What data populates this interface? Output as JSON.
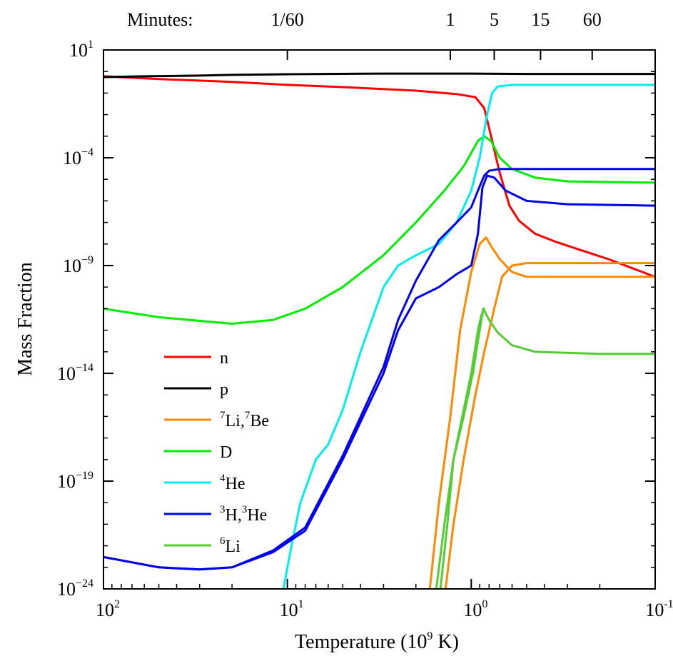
{
  "chart_data": {
    "type": "line",
    "title": "",
    "xlabel": "Temperature (10⁹ K)",
    "ylabel": "Mass Fraction",
    "x_scale": "log",
    "x_direction": "decreasing",
    "xlim": [
      100,
      0.1
    ],
    "y_scale": "log",
    "ylim": [
      1e-24,
      10
    ],
    "x_ticks": [
      {
        "value": 100,
        "base": "10",
        "exp": "2"
      },
      {
        "value": 10,
        "base": "10",
        "exp": "1"
      },
      {
        "value": 1,
        "base": "10",
        "exp": "0"
      },
      {
        "value": 0.1,
        "base": "10",
        "exp": "-1"
      }
    ],
    "y_ticks": [
      {
        "value": 10,
        "base": "10",
        "exp": "1"
      },
      {
        "value": 0.0001,
        "base": "10",
        "exp": "−4"
      },
      {
        "value": 1e-09,
        "base": "10",
        "exp": "−9"
      },
      {
        "value": 1e-14,
        "base": "10",
        "exp": "−14"
      },
      {
        "value": 1e-19,
        "base": "10",
        "exp": "−19"
      },
      {
        "value": 1e-24,
        "base": "10",
        "exp": "−24"
      }
    ],
    "top_axis": {
      "label": "Minutes:",
      "ticks": [
        {
          "label": "1/60",
          "temperature": 10
        },
        {
          "label": "1",
          "temperature": 1.3
        },
        {
          "label": "5",
          "temperature": 0.75
        },
        {
          "label": "15",
          "temperature": 0.42
        },
        {
          "label": "60",
          "temperature": 0.22
        }
      ]
    },
    "grid": false,
    "legend_position": "lower-left",
    "series": [
      {
        "name": "n",
        "legend": [
          {
            "t": "n"
          }
        ],
        "color": "#ff0000",
        "points": [
          [
            100,
            0.6
          ],
          [
            50,
            0.45
          ],
          [
            20,
            0.33
          ],
          [
            10,
            0.24
          ],
          [
            5,
            0.19
          ],
          [
            2,
            0.13
          ],
          [
            1.2,
            0.09
          ],
          [
            0.95,
            0.065
          ],
          [
            0.85,
            0.02
          ],
          [
            0.78,
            0.001
          ],
          [
            0.7,
            2e-05
          ],
          [
            0.62,
            6e-07
          ],
          [
            0.55,
            1.2e-07
          ],
          [
            0.45,
            3e-08
          ],
          [
            0.35,
            1.3e-08
          ],
          [
            0.25,
            5e-09
          ],
          [
            0.18,
            2e-09
          ],
          [
            0.13,
            7e-10
          ],
          [
            0.1,
            3e-10
          ]
        ]
      },
      {
        "name": "p",
        "legend": [
          {
            "t": "p"
          }
        ],
        "color": "#000000",
        "points": [
          [
            100,
            0.55
          ],
          [
            60,
            0.6
          ],
          [
            30,
            0.65
          ],
          [
            20,
            0.7
          ],
          [
            10,
            0.75
          ],
          [
            3,
            0.8
          ],
          [
            1,
            0.8
          ],
          [
            0.5,
            0.77
          ],
          [
            0.1,
            0.77
          ]
        ]
      },
      {
        "name": "7Li,7Be",
        "legend": [
          {
            "s": "7"
          },
          {
            "t": "Li,"
          },
          {
            "s": "7"
          },
          {
            "t": "Be"
          }
        ],
        "color": "#ff8800",
        "points": [
          [
            1.68,
            1e-24
          ],
          [
            1.5,
            1e-20
          ],
          [
            1.3,
            1e-16
          ],
          [
            1.15,
            1e-12
          ],
          [
            1.0,
            5e-10
          ],
          [
            0.9,
            1e-08
          ],
          [
            0.83,
            2e-08
          ],
          [
            0.78,
            8e-09
          ],
          [
            0.7,
            2e-09
          ],
          [
            0.6,
            5e-10
          ],
          [
            0.5,
            3e-10
          ],
          [
            0.3,
            3e-10
          ],
          [
            0.1,
            3e-10
          ]
        ]
      },
      {
        "name": "7Be",
        "color": "#ff8800",
        "points": [
          [
            1.38,
            1e-24
          ],
          [
            1.25,
            1e-21
          ],
          [
            1.1,
            1e-18
          ],
          [
            0.95,
            1e-15
          ],
          [
            0.85,
            1e-13
          ],
          [
            0.75,
            1e-11
          ],
          [
            0.68,
            3e-10
          ],
          [
            0.6,
            1e-09
          ],
          [
            0.5,
            1.3e-09
          ],
          [
            0.3,
            1.3e-09
          ],
          [
            0.1,
            1.3e-09
          ]
        ]
      },
      {
        "name": "D",
        "legend": [
          {
            "t": "D"
          }
        ],
        "color": "#00ee00",
        "points": [
          [
            100,
            1e-11
          ],
          [
            50,
            4e-12
          ],
          [
            20,
            2e-12
          ],
          [
            12,
            3e-12
          ],
          [
            8,
            1e-11
          ],
          [
            5,
            1e-10
          ],
          [
            3,
            3e-09
          ],
          [
            2,
            1e-07
          ],
          [
            1.4,
            3e-06
          ],
          [
            1.1,
            4e-05
          ],
          [
            0.92,
            0.0006
          ],
          [
            0.85,
            0.001
          ],
          [
            0.78,
            0.0006
          ],
          [
            0.7,
            0.0001
          ],
          [
            0.6,
            3e-05
          ],
          [
            0.45,
            1.2e-05
          ],
          [
            0.3,
            8e-06
          ],
          [
            0.1,
            7e-06
          ]
        ]
      },
      {
        "name": "4He",
        "legend": [
          {
            "s": "4"
          },
          {
            "t": "He"
          }
        ],
        "color": "#00eeee",
        "points": [
          [
            10.5,
            1e-24
          ],
          [
            9.5,
            1e-22
          ],
          [
            8.5,
            1e-20
          ],
          [
            7,
            1e-18
          ],
          [
            6,
            5e-18
          ],
          [
            5,
            2e-16
          ],
          [
            4,
            1e-13
          ],
          [
            3,
            1e-10
          ],
          [
            2.5,
            1e-09
          ],
          [
            2,
            3e-09
          ],
          [
            1.5,
            1e-08
          ],
          [
            1.2,
            1e-07
          ],
          [
            1,
            3e-06
          ],
          [
            0.9,
            0.0001
          ],
          [
            0.82,
            0.01
          ],
          [
            0.77,
            0.1
          ],
          [
            0.72,
            0.2
          ],
          [
            0.6,
            0.24
          ],
          [
            0.1,
            0.24
          ]
        ]
      },
      {
        "name": "3H",
        "legend": [
          {
            "s": "3"
          },
          {
            "t": "H,"
          },
          {
            "s": "3"
          },
          {
            "t": "He"
          }
        ],
        "color": "#0000ee",
        "points": [
          [
            100,
            3e-23
          ],
          [
            50,
            1e-23
          ],
          [
            30,
            8e-24
          ],
          [
            20,
            1e-23
          ],
          [
            12,
            5e-23
          ],
          [
            8,
            5e-22
          ],
          [
            5,
            1e-18
          ],
          [
            3,
            1e-14
          ],
          [
            2.5,
            1e-12
          ],
          [
            2,
            3e-11
          ],
          [
            1.5,
            1e-10
          ],
          [
            1.2,
            4e-10
          ],
          [
            1.0,
            1e-09
          ],
          [
            0.92,
            3e-08
          ],
          [
            0.87,
            4e-06
          ],
          [
            0.82,
            1.5e-05
          ],
          [
            0.75,
            1.2e-05
          ],
          [
            0.65,
            3e-06
          ],
          [
            0.5,
            1e-06
          ],
          [
            0.3,
            7e-07
          ],
          [
            0.1,
            6e-07
          ]
        ]
      },
      {
        "name": "3He",
        "color": "#0000ee",
        "points": [
          [
            100,
            3e-23
          ],
          [
            50,
            1e-23
          ],
          [
            30,
            8e-24
          ],
          [
            20,
            1e-23
          ],
          [
            12,
            6e-23
          ],
          [
            8,
            7e-22
          ],
          [
            5,
            1.5e-18
          ],
          [
            3,
            2e-14
          ],
          [
            2.5,
            3e-12
          ],
          [
            2,
            2e-10
          ],
          [
            1.5,
            1.5e-08
          ],
          [
            1.2,
            1e-07
          ],
          [
            1.0,
            5e-07
          ],
          [
            0.92,
            3e-06
          ],
          [
            0.85,
            1.5e-05
          ],
          [
            0.8,
            2.5e-05
          ],
          [
            0.7,
            3e-05
          ],
          [
            0.5,
            3e-05
          ],
          [
            0.1,
            3e-05
          ]
        ]
      },
      {
        "name": "6Li",
        "legend": [
          {
            "s": "6"
          },
          {
            "t": "Li"
          }
        ],
        "color": "#55cc33",
        "points": [
          [
            1.47,
            1e-24
          ],
          [
            1.35,
            1e-21
          ],
          [
            1.25,
            1e-18
          ],
          [
            1.1,
            1e-16
          ],
          [
            0.98,
            1e-14
          ],
          [
            0.9,
            1e-12
          ],
          [
            0.86,
            1e-11
          ],
          [
            0.8,
            3e-12
          ],
          [
            0.72,
            8e-13
          ],
          [
            0.6,
            2e-13
          ],
          [
            0.45,
            1e-13
          ],
          [
            0.2,
            8e-14
          ],
          [
            0.1,
            8e-14
          ]
        ]
      },
      {
        "name": "6Li-b",
        "color": "#55cc33",
        "points": [
          [
            1.55,
            1e-24
          ],
          [
            1.4,
            1e-21
          ],
          [
            1.25,
            1e-18
          ],
          [
            1.12,
            1e-16
          ],
          [
            1.0,
            1e-14
          ],
          [
            0.92,
            1e-12
          ],
          [
            0.88,
            5e-12
          ],
          [
            0.85,
            1e-11
          ]
        ]
      }
    ]
  }
}
